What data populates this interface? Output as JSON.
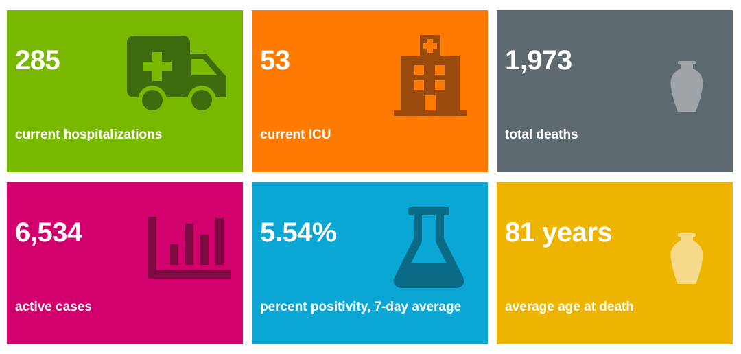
{
  "tiles": [
    {
      "value": "285",
      "label": "current hospitalizations",
      "color": "#78b800",
      "icon": "ambulance-icon"
    },
    {
      "value": "53",
      "label": "current ICU",
      "color": "#ff7a00",
      "icon": "hospital-building-icon"
    },
    {
      "value": "1,973",
      "label": "total deaths",
      "color": "#5f6970",
      "icon": "urn-icon"
    },
    {
      "value": "6,534",
      "label": "active cases",
      "color": "#d2006d",
      "icon": "bar-chart-icon"
    },
    {
      "value": "5.54%",
      "label": "percent positivity, 7-day average",
      "color": "#0aa7d4",
      "icon": "flask-icon"
    },
    {
      "value": "81 years",
      "label": "average age at death",
      "color": "#edb500",
      "icon": "urn-icon"
    }
  ]
}
